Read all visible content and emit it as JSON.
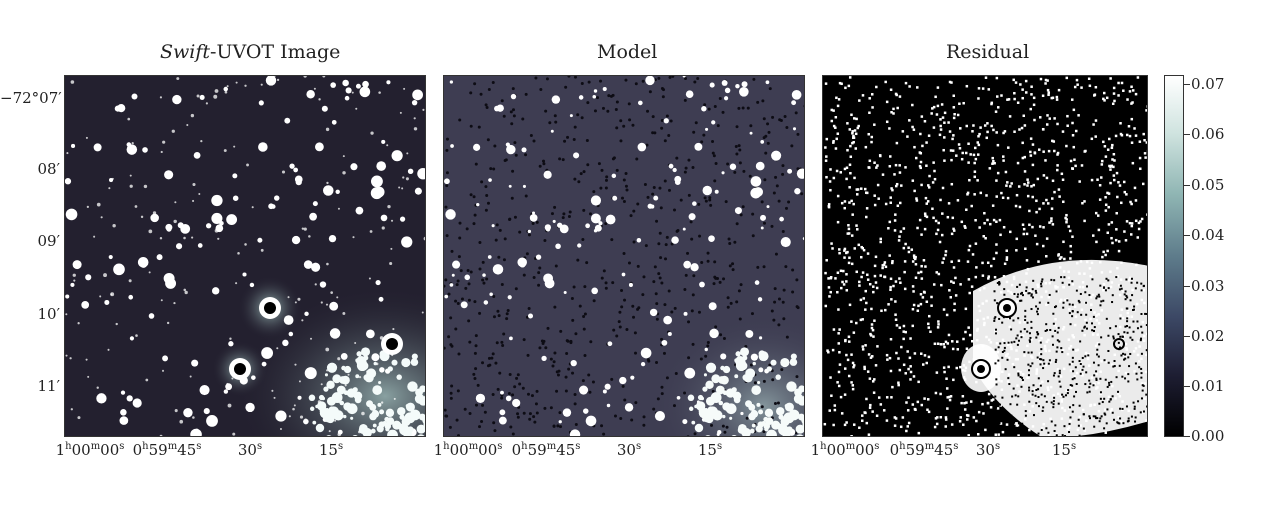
{
  "panels": [
    {
      "id": "image",
      "title_italic": "Swift",
      "title_rest": "-UVOT Image"
    },
    {
      "id": "model",
      "title": "Model"
    },
    {
      "id": "residual",
      "title": "Residual"
    }
  ],
  "dec_ticks": [
    "−72°07′",
    "08′",
    "09′",
    "10′",
    "11′"
  ],
  "ra_ticks": {
    "t0": {
      "h": "1",
      "hu": "h",
      "m": "00",
      "mu": "m",
      "s": "00",
      "su": "s"
    },
    "t1": {
      "h": "0",
      "hu": "h",
      "m": "59",
      "mu": "m",
      "s": "45",
      "su": "s"
    },
    "t2": {
      "s": "30",
      "su": "s"
    },
    "t3": {
      "s": "15",
      "su": "s"
    }
  },
  "colorbar": {
    "ticks": [
      "0.07",
      "0.06",
      "0.05",
      "0.04",
      "0.03",
      "0.02",
      "0.01",
      "0.00"
    ],
    "colors": {
      "max": "#ffffff",
      "mid": "#5e7c8b",
      "min": "#000000"
    }
  }
}
